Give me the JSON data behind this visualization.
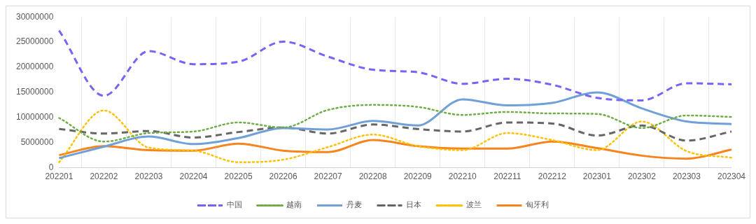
{
  "chart_data": {
    "type": "line",
    "categories": [
      "202201",
      "202202",
      "202203",
      "202204",
      "202205",
      "202206",
      "202207",
      "202208",
      "202209",
      "202210",
      "202211",
      "202212",
      "202301",
      "202302",
      "202303",
      "202304"
    ],
    "series": [
      {
        "name": "中国",
        "color": "#7b61f7",
        "line_style": "dashed",
        "values": [
          27300000,
          14300000,
          23200000,
          20600000,
          21100000,
          25100000,
          22100000,
          19500000,
          19000000,
          16700000,
          17700000,
          16500000,
          13900000,
          13400000,
          16800000,
          16600000
        ]
      },
      {
        "name": "越南",
        "color": "#70ad47",
        "line_style": "dotted",
        "values": [
          9900000,
          5200000,
          6900000,
          7200000,
          9000000,
          8000000,
          11500000,
          12500000,
          12100000,
          10500000,
          11100000,
          10800000,
          10700000,
          7900000,
          10400000,
          10100000
        ]
      },
      {
        "name": "丹麦",
        "color": "#6fa0d8",
        "line_style": "solid",
        "values": [
          1900000,
          4200000,
          6200000,
          4700000,
          5900000,
          7900000,
          7600000,
          9300000,
          8400000,
          13600000,
          12400000,
          12900000,
          15000000,
          11800000,
          9200000,
          8700000
        ]
      },
      {
        "name": "日本",
        "color": "#666666",
        "line_style": "dashed",
        "values": [
          7700000,
          6800000,
          7300000,
          6000000,
          7100000,
          8000000,
          6800000,
          8600000,
          7700000,
          7200000,
          9000000,
          8800000,
          6400000,
          8400000,
          5400000,
          7200000
        ]
      },
      {
        "name": "波兰",
        "color": "#ffc000",
        "line_style": "dotted",
        "values": [
          1100000,
          11400000,
          4000000,
          3400000,
          1100000,
          1600000,
          4100000,
          6600000,
          4300000,
          3500000,
          6900000,
          5500000,
          3500000,
          9200000,
          3300000,
          2000000
        ]
      },
      {
        "name": "匈牙利",
        "color": "#f7841e",
        "line_style": "solid",
        "values": [
          2500000,
          4300000,
          3500000,
          3400000,
          4800000,
          3400000,
          3100000,
          5500000,
          4300000,
          3800000,
          3800000,
          5200000,
          3900000,
          2400000,
          1800000,
          3600000
        ]
      }
    ],
    "ylim": [
      0,
      30000000
    ],
    "yticks": [
      0,
      5000000,
      10000000,
      15000000,
      20000000,
      25000000,
      30000000
    ],
    "grid": "x",
    "legend": "bottom",
    "marker": "none"
  }
}
